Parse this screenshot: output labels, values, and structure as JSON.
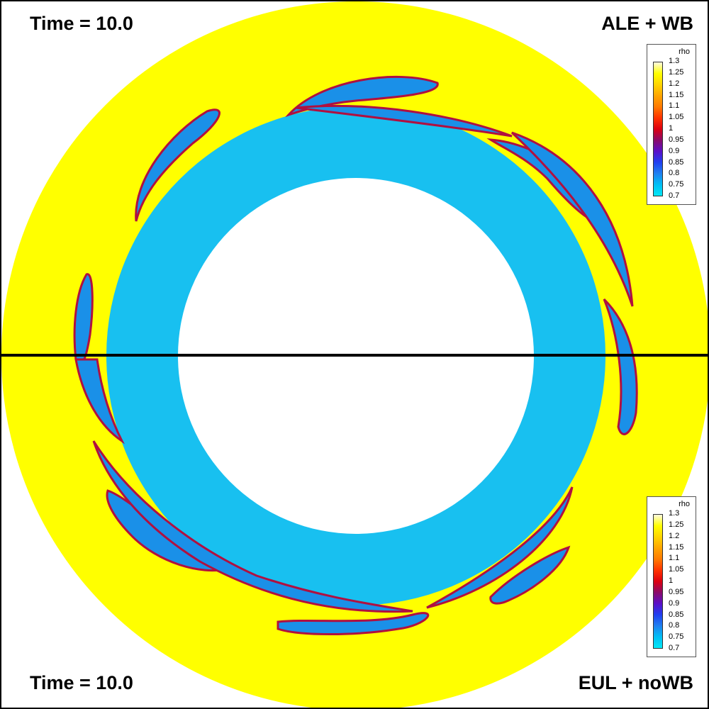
{
  "top_panel": {
    "time_label": "Time = 10.0",
    "method_label": "ALE + WB"
  },
  "bottom_panel": {
    "time_label": "Time = 10.0",
    "method_label": "EUL + noWB"
  },
  "legend": {
    "title": "rho",
    "ticks": [
      "1.3",
      "1.25",
      "1.2",
      "1.15",
      "1.1",
      "1.05",
      "1",
      "0.95",
      "0.9",
      "0.85",
      "0.8",
      "0.75",
      "0.7"
    ],
    "colors": [
      "#fffbe0",
      "#ffff00",
      "#ffd400",
      "#ffa500",
      "#ff7a00",
      "#ff3300",
      "#dd0010",
      "#8a0a6a",
      "#5a10c8",
      "#2040f0",
      "#2080f0",
      "#00bff5",
      "#00e8f5"
    ]
  },
  "colors": {
    "background": "#ffff00",
    "annulus": "#18c0f0",
    "vortex": "#1a90e8",
    "vortex_edge": "#b01040",
    "divider": "#000000"
  }
}
